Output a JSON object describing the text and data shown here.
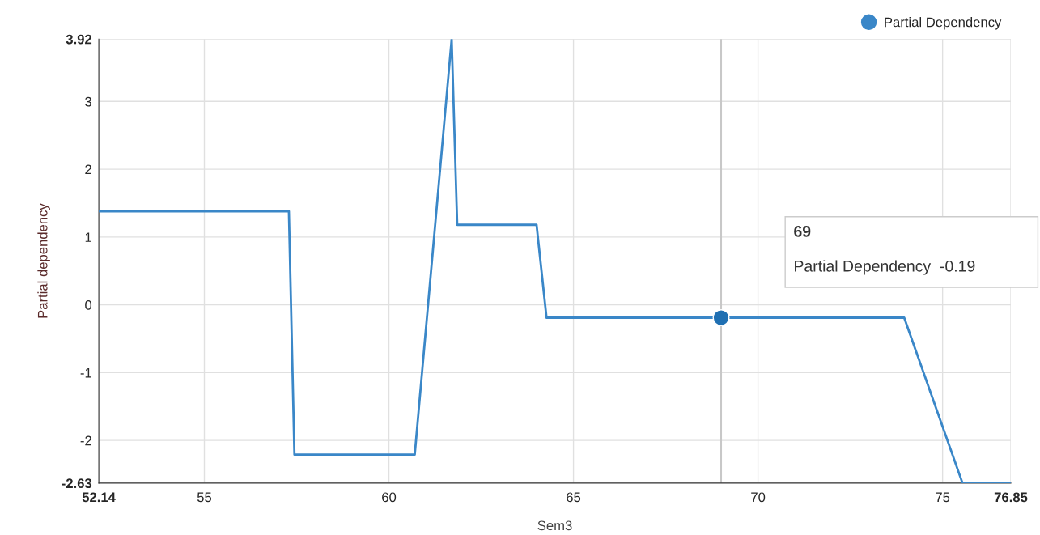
{
  "chart_data": {
    "type": "line",
    "xlabel": "Sem3",
    "ylabel": "Partial dependency",
    "x": [
      52.14,
      57.29,
      57.44,
      60.7,
      61.7,
      61.85,
      64.0,
      64.27,
      73.96,
      75.54,
      76.85
    ],
    "series": [
      {
        "name": "Partial Dependency",
        "color": "#3a87c8",
        "values": [
          1.38,
          1.38,
          -2.21,
          -2.21,
          3.92,
          1.18,
          1.18,
          -0.19,
          -0.19,
          -2.63,
          -2.63
        ]
      },
      {
        "type": "scatter",
        "color": "#1f6fb2",
        "marker": "circle",
        "x": [
          69
        ],
        "values": [
          -0.19
        ]
      }
    ],
    "xlim": [
      52.14,
      76.85
    ],
    "xticks": [
      52.14,
      55,
      60,
      65,
      70,
      75,
      76.85
    ],
    "ylim": [
      -2.63,
      3.92
    ],
    "yticks": [
      -2.63,
      -2,
      -1,
      0,
      1,
      2,
      3,
      3.92
    ],
    "ref_lines": [
      {
        "axis": "x",
        "value": 69,
        "color": "#c8c8c8"
      }
    ],
    "annotations": [
      "69",
      "Partial Dependency  -0.19"
    ],
    "grid": true,
    "legend": "top right"
  }
}
